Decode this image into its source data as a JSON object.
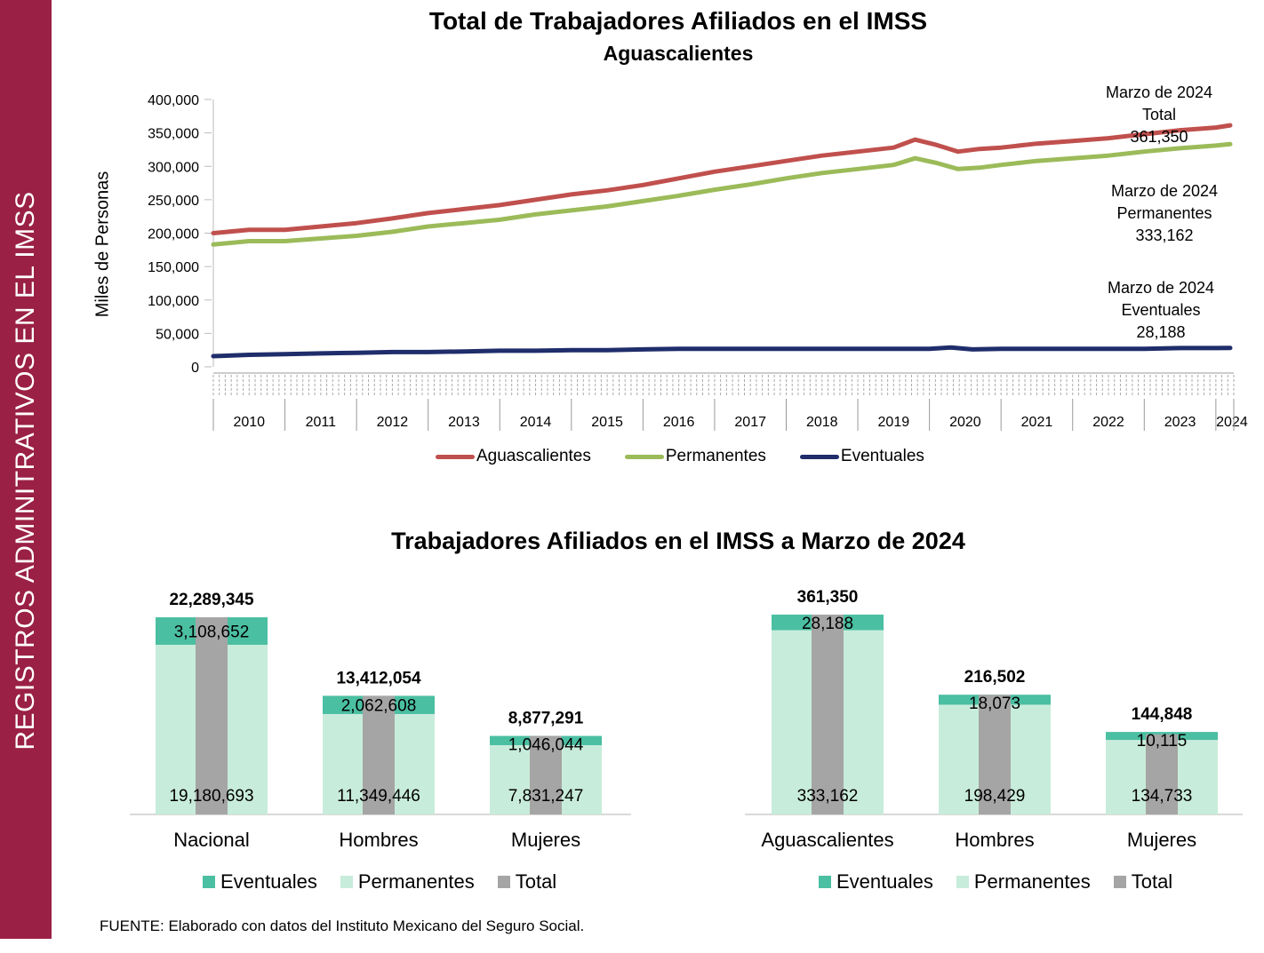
{
  "sidebar": {
    "label": "REGISTROS ADMINITRATIVOS EN EL IMSS"
  },
  "colors": {
    "sidebar": "#9a2045",
    "total_line": "#c0504d",
    "permanentes_line": "#9bbb59",
    "eventuales_line": "#1f2d6b",
    "eventuales_bar": "#4bbfa2",
    "permanentes_bar": "#c8ecdb",
    "total_bar": "#a5a5a5"
  },
  "footer": {
    "source": "FUENTE: Elaborado con datos del Instituto Mexicano del Seguro Social."
  },
  "chart_data": [
    {
      "type": "line",
      "title": "Total de Trabajadores Afiliados en el IMSS",
      "subtitle": "Aguascalientes",
      "ylabel": "Miles de Personas",
      "ylim": [
        0,
        400000
      ],
      "yticks": [
        "400,000",
        "350,000",
        "300,000",
        "250,000",
        "200,000",
        "150,000",
        "100,000",
        "50,000",
        "0"
      ],
      "x_categories": [
        "2010",
        "2011",
        "2012",
        "2013",
        "2014",
        "2015",
        "2016",
        "2017",
        "2018",
        "2019",
        "2020",
        "2021",
        "2022",
        "2023",
        "2024"
      ],
      "annotations": [
        {
          "lines": [
            "Marzo de 2024",
            "Total",
            "361,350"
          ]
        },
        {
          "lines": [
            "Marzo de 2024",
            "Permanentes",
            "333,162"
          ]
        },
        {
          "lines": [
            "Marzo de 2024",
            "Eventuales",
            "28,188"
          ]
        }
      ],
      "series": [
        {
          "name": "Aguascalientes",
          "points": [
            [
              2010.0,
              200000
            ],
            [
              2010.5,
              205000
            ],
            [
              2011.0,
              205000
            ],
            [
              2011.5,
              210000
            ],
            [
              2012.0,
              215000
            ],
            [
              2012.5,
              222000
            ],
            [
              2013.0,
              230000
            ],
            [
              2013.5,
              236000
            ],
            [
              2014.0,
              242000
            ],
            [
              2014.5,
              250000
            ],
            [
              2015.0,
              258000
            ],
            [
              2015.5,
              264000
            ],
            [
              2016.0,
              272000
            ],
            [
              2016.5,
              282000
            ],
            [
              2017.0,
              292000
            ],
            [
              2017.5,
              300000
            ],
            [
              2018.0,
              308000
            ],
            [
              2018.5,
              316000
            ],
            [
              2019.0,
              322000
            ],
            [
              2019.5,
              328000
            ],
            [
              2019.8,
              340000
            ],
            [
              2020.1,
              332000
            ],
            [
              2020.4,
              322000
            ],
            [
              2020.7,
              326000
            ],
            [
              2021.0,
              328000
            ],
            [
              2021.5,
              334000
            ],
            [
              2022.0,
              338000
            ],
            [
              2022.5,
              342000
            ],
            [
              2023.0,
              348000
            ],
            [
              2023.5,
              354000
            ],
            [
              2024.0,
              358000
            ],
            [
              2024.2,
              361350
            ]
          ]
        },
        {
          "name": "Permanentes",
          "points": [
            [
              2010.0,
              183000
            ],
            [
              2010.5,
              188000
            ],
            [
              2011.0,
              188000
            ],
            [
              2011.5,
              192000
            ],
            [
              2012.0,
              196000
            ],
            [
              2012.5,
              202000
            ],
            [
              2013.0,
              210000
            ],
            [
              2013.5,
              215000
            ],
            [
              2014.0,
              220000
            ],
            [
              2014.5,
              228000
            ],
            [
              2015.0,
              234000
            ],
            [
              2015.5,
              240000
            ],
            [
              2016.0,
              248000
            ],
            [
              2016.5,
              256000
            ],
            [
              2017.0,
              265000
            ],
            [
              2017.5,
              273000
            ],
            [
              2018.0,
              282000
            ],
            [
              2018.5,
              290000
            ],
            [
              2019.0,
              296000
            ],
            [
              2019.5,
              302000
            ],
            [
              2019.8,
              312000
            ],
            [
              2020.1,
              305000
            ],
            [
              2020.4,
              296000
            ],
            [
              2020.7,
              298000
            ],
            [
              2021.0,
              302000
            ],
            [
              2021.5,
              308000
            ],
            [
              2022.0,
              312000
            ],
            [
              2022.5,
              316000
            ],
            [
              2023.0,
              322000
            ],
            [
              2023.5,
              327000
            ],
            [
              2024.0,
              331000
            ],
            [
              2024.2,
              333162
            ]
          ]
        },
        {
          "name": "Eventuales",
          "points": [
            [
              2010.0,
              16000
            ],
            [
              2010.5,
              18000
            ],
            [
              2011.0,
              19000
            ],
            [
              2011.5,
              20000
            ],
            [
              2012.0,
              21000
            ],
            [
              2012.5,
              22000
            ],
            [
              2013.0,
              22000
            ],
            [
              2013.5,
              23000
            ],
            [
              2014.0,
              24000
            ],
            [
              2014.5,
              24000
            ],
            [
              2015.0,
              25000
            ],
            [
              2015.5,
              25000
            ],
            [
              2016.0,
              26000
            ],
            [
              2016.5,
              27000
            ],
            [
              2017.0,
              27000
            ],
            [
              2017.5,
              27000
            ],
            [
              2018.0,
              27000
            ],
            [
              2018.5,
              27000
            ],
            [
              2019.0,
              27000
            ],
            [
              2019.5,
              27000
            ],
            [
              2020.0,
              27000
            ],
            [
              2020.3,
              29000
            ],
            [
              2020.6,
              26000
            ],
            [
              2021.0,
              27000
            ],
            [
              2021.5,
              27000
            ],
            [
              2022.0,
              27000
            ],
            [
              2022.5,
              27000
            ],
            [
              2023.0,
              27000
            ],
            [
              2023.5,
              28000
            ],
            [
              2024.0,
              28000
            ],
            [
              2024.2,
              28188
            ]
          ]
        }
      ],
      "legend": [
        "Aguascalientes",
        "Permanentes",
        "Eventuales"
      ]
    },
    {
      "type": "bar",
      "title": "Trabajadores Afiliados en el IMSS a Marzo de 2024",
      "panels": [
        {
          "categories": [
            "Nacional",
            "Hombres",
            "Mujeres"
          ],
          "totals": [
            22289345,
            13412054,
            8877291
          ],
          "totals_labels": [
            "22,289,345",
            "13,412,054",
            "8,877,291"
          ],
          "eventuales": [
            3108652,
            2062608,
            1046044
          ],
          "eventuales_labels": [
            "3,108,652",
            "2,062,608",
            "1,046,044"
          ],
          "permanentes": [
            19180693,
            11349446,
            7831247
          ],
          "permanentes_labels": [
            "19,180,693",
            "11,349,446",
            "7,831,247"
          ],
          "legend": [
            "Eventuales",
            "Permanentes",
            "Total"
          ]
        },
        {
          "categories": [
            "Aguascalientes",
            "Hombres",
            "Mujeres"
          ],
          "totals": [
            361350,
            216502,
            144848
          ],
          "totals_labels": [
            "361,350",
            "216,502",
            "144,848"
          ],
          "eventuales": [
            28188,
            18073,
            10115
          ],
          "eventuales_labels": [
            "28,188",
            "18,073",
            "10,115"
          ],
          "permanentes": [
            333162,
            198429,
            134733
          ],
          "permanentes_labels": [
            "333,162",
            "198,429",
            "134,733"
          ],
          "legend": [
            "Eventuales",
            "Permanentes",
            "Total"
          ]
        }
      ]
    }
  ]
}
